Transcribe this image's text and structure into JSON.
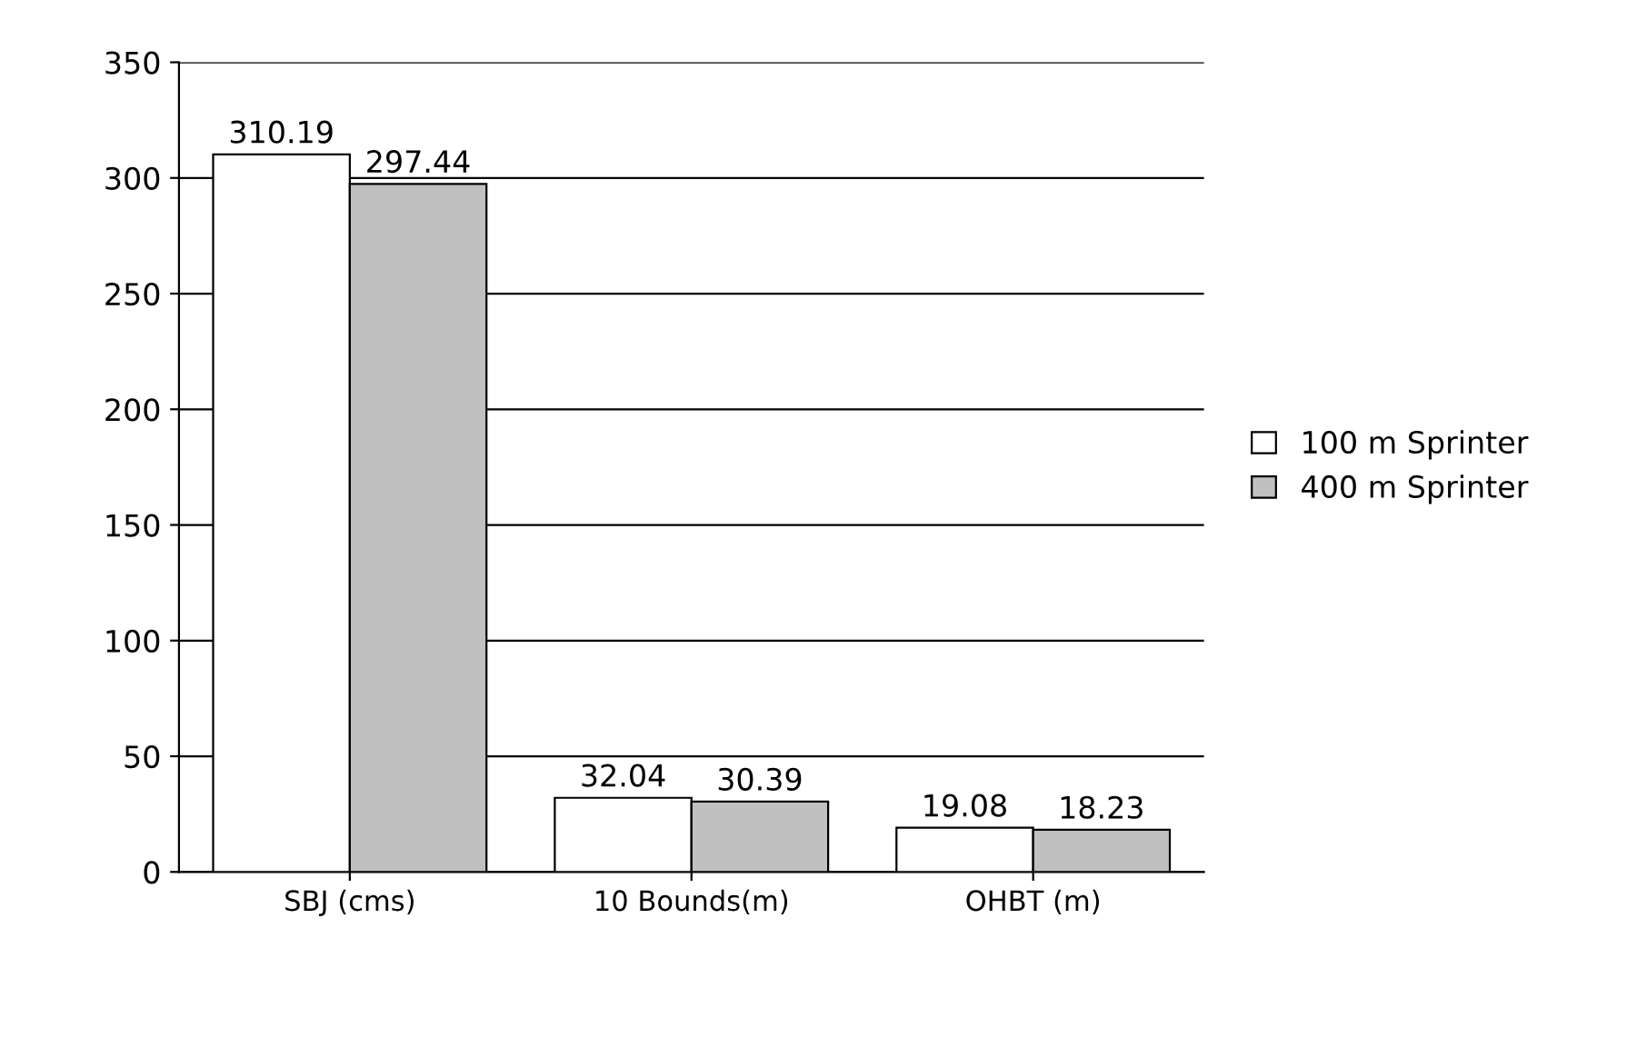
{
  "chart_data": {
    "type": "bar",
    "categories": [
      "SBJ (cms)",
      "10 Bounds(m)",
      "OHBT (m)"
    ],
    "series": [
      {
        "name": "100 m Sprinter",
        "color": "#ffffff",
        "values": [
          310.19,
          32.04,
          19.08
        ]
      },
      {
        "name": "400 m Sprinter",
        "color": "#c0c0c0",
        "values": [
          297.44,
          30.39,
          18.23
        ]
      }
    ],
    "ylim": [
      0,
      350
    ],
    "yticks": [
      0,
      50,
      100,
      150,
      200,
      250,
      300,
      350
    ],
    "grid": "y",
    "legend": "right",
    "data_labels": true
  }
}
